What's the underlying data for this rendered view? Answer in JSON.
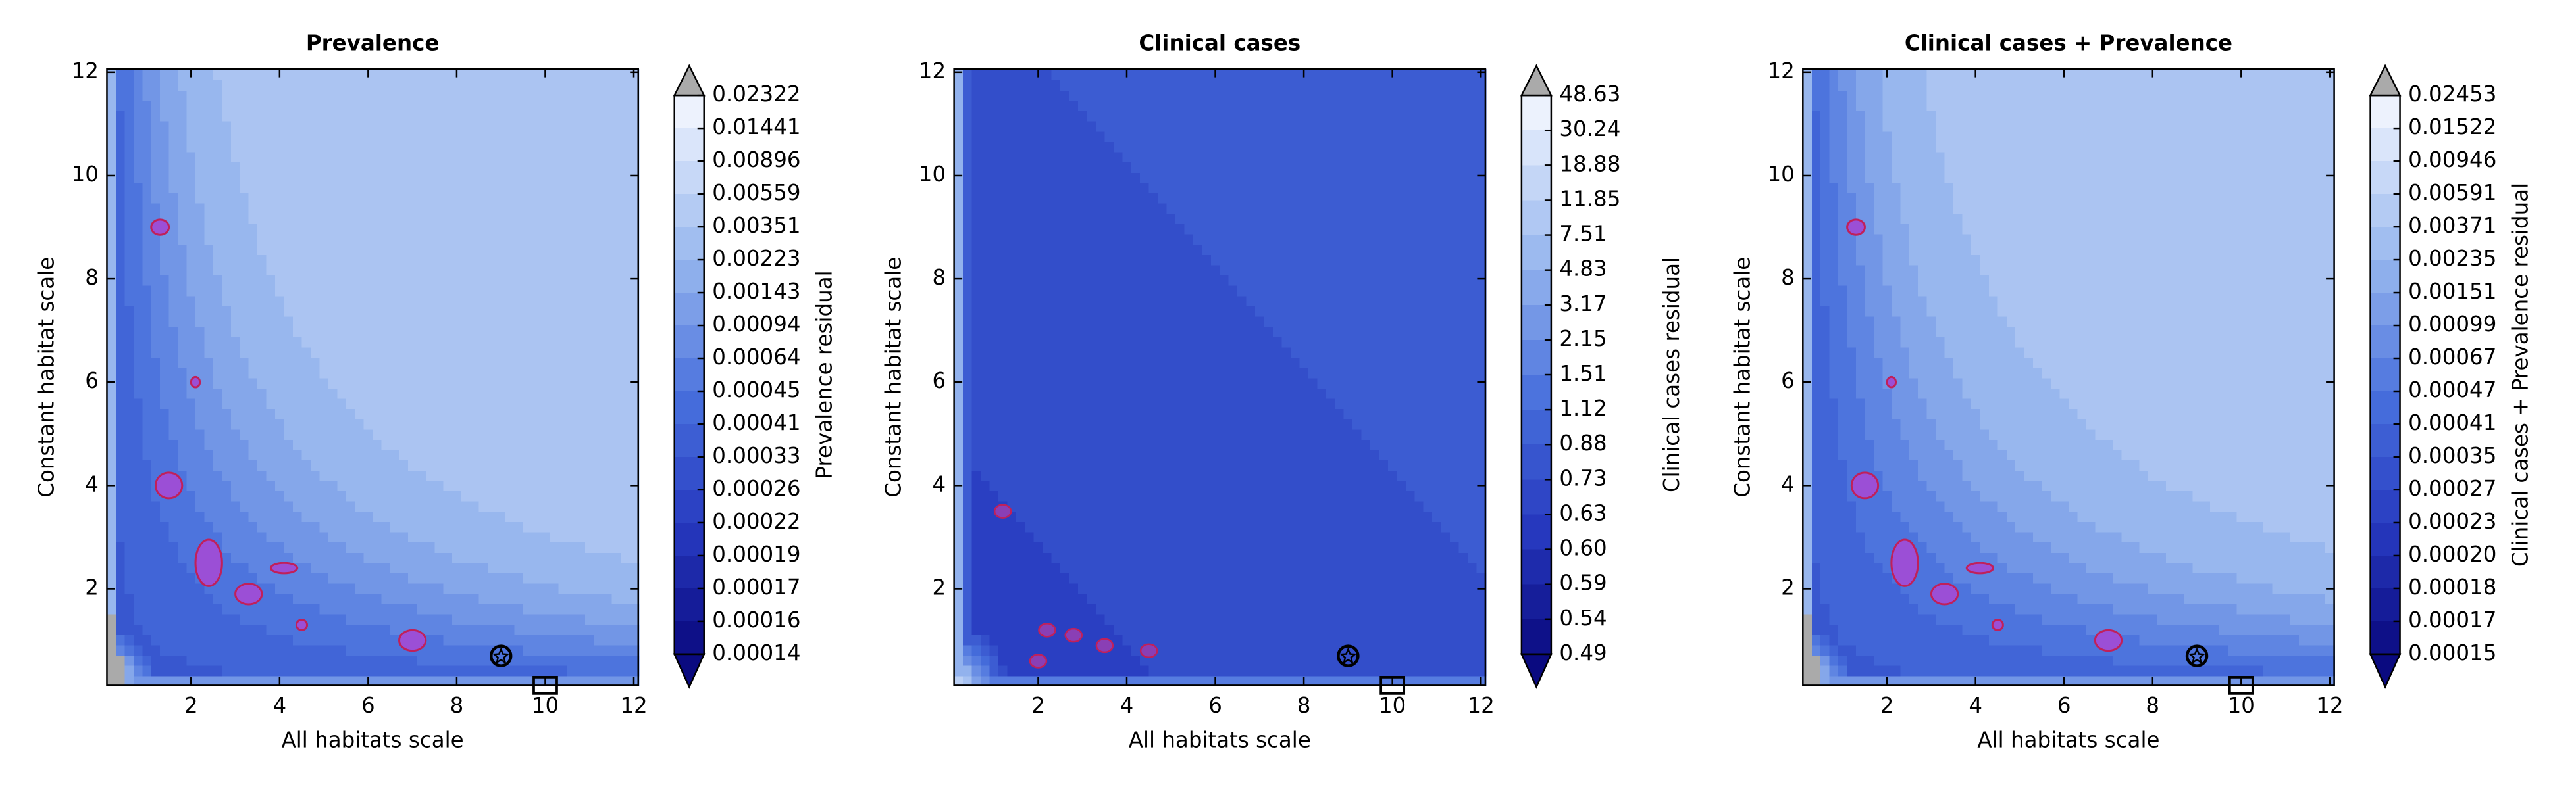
{
  "chart_data": [
    {
      "type": "contour",
      "title": "Prevalence",
      "xlabel": "All habitats scale",
      "ylabel": "Constant habitat scale",
      "xlim": [
        0.1,
        12.1
      ],
      "ylim": [
        0.13,
        12.06
      ],
      "xticks": [
        2,
        4,
        6,
        8,
        10,
        12
      ],
      "yticks": [
        2,
        4,
        6,
        8,
        10,
        12
      ],
      "colorbar": {
        "label": "Prevalence residual",
        "ticks": [
          0.02322,
          0.01441,
          0.00896,
          0.00559,
          0.00351,
          0.00223,
          0.00143,
          0.00094,
          0.00064,
          0.00045,
          0.00041,
          0.00033,
          0.00026,
          0.00022,
          0.00019,
          0.00017,
          0.00016,
          0.00014
        ]
      },
      "markers": [
        {
          "x": 9,
          "y": 0.7,
          "shape": "star"
        },
        {
          "x": 10,
          "y": 0.13,
          "shape": "square"
        }
      ]
    },
    {
      "type": "contour",
      "title": "Clinical cases",
      "xlabel": "All habitats scale",
      "ylabel": "Constant habitat scale",
      "xlim": [
        0.1,
        12.1
      ],
      "ylim": [
        0.13,
        12.06
      ],
      "xticks": [
        2,
        4,
        6,
        8,
        10,
        12
      ],
      "yticks": [
        2,
        4,
        6,
        8,
        10,
        12
      ],
      "colorbar": {
        "label": "Clinical cases residual",
        "ticks": [
          48.63,
          30.24,
          18.88,
          11.85,
          7.51,
          4.83,
          3.17,
          2.15,
          1.51,
          1.12,
          0.88,
          0.73,
          0.63,
          {
            "value": 0.6,
            "label": "0.60"
          },
          0.59,
          0.54,
          0.49
        ]
      },
      "markers": [
        {
          "x": 9,
          "y": 0.7,
          "shape": "star"
        },
        {
          "x": 10,
          "y": 0.13,
          "shape": "square"
        }
      ]
    },
    {
      "type": "contour",
      "title": "Clinical cases + Prevalence",
      "xlabel": "All habitats scale",
      "ylabel": "Constant habitat scale",
      "xlim": [
        0.1,
        12.1
      ],
      "ylim": [
        0.13,
        12.06
      ],
      "xticks": [
        2,
        4,
        6,
        8,
        10,
        12
      ],
      "yticks": [
        2,
        4,
        6,
        8,
        10,
        12
      ],
      "colorbar": {
        "label": "Clinical cases + Prevalence residual",
        "ticks": [
          0.02453,
          0.01522,
          0.00946,
          0.00591,
          0.00371,
          0.00235,
          0.00151,
          0.00099,
          0.00067,
          0.00047,
          0.00041,
          0.00035,
          0.00027,
          0.00023,
          {
            "value": 0.0002,
            "label": "0.00020"
          },
          0.00018,
          0.00017,
          0.00015
        ]
      },
      "markers": [
        {
          "x": 9,
          "y": 0.7,
          "shape": "star"
        },
        {
          "x": 10,
          "y": 0.13,
          "shape": "square"
        }
      ]
    }
  ]
}
